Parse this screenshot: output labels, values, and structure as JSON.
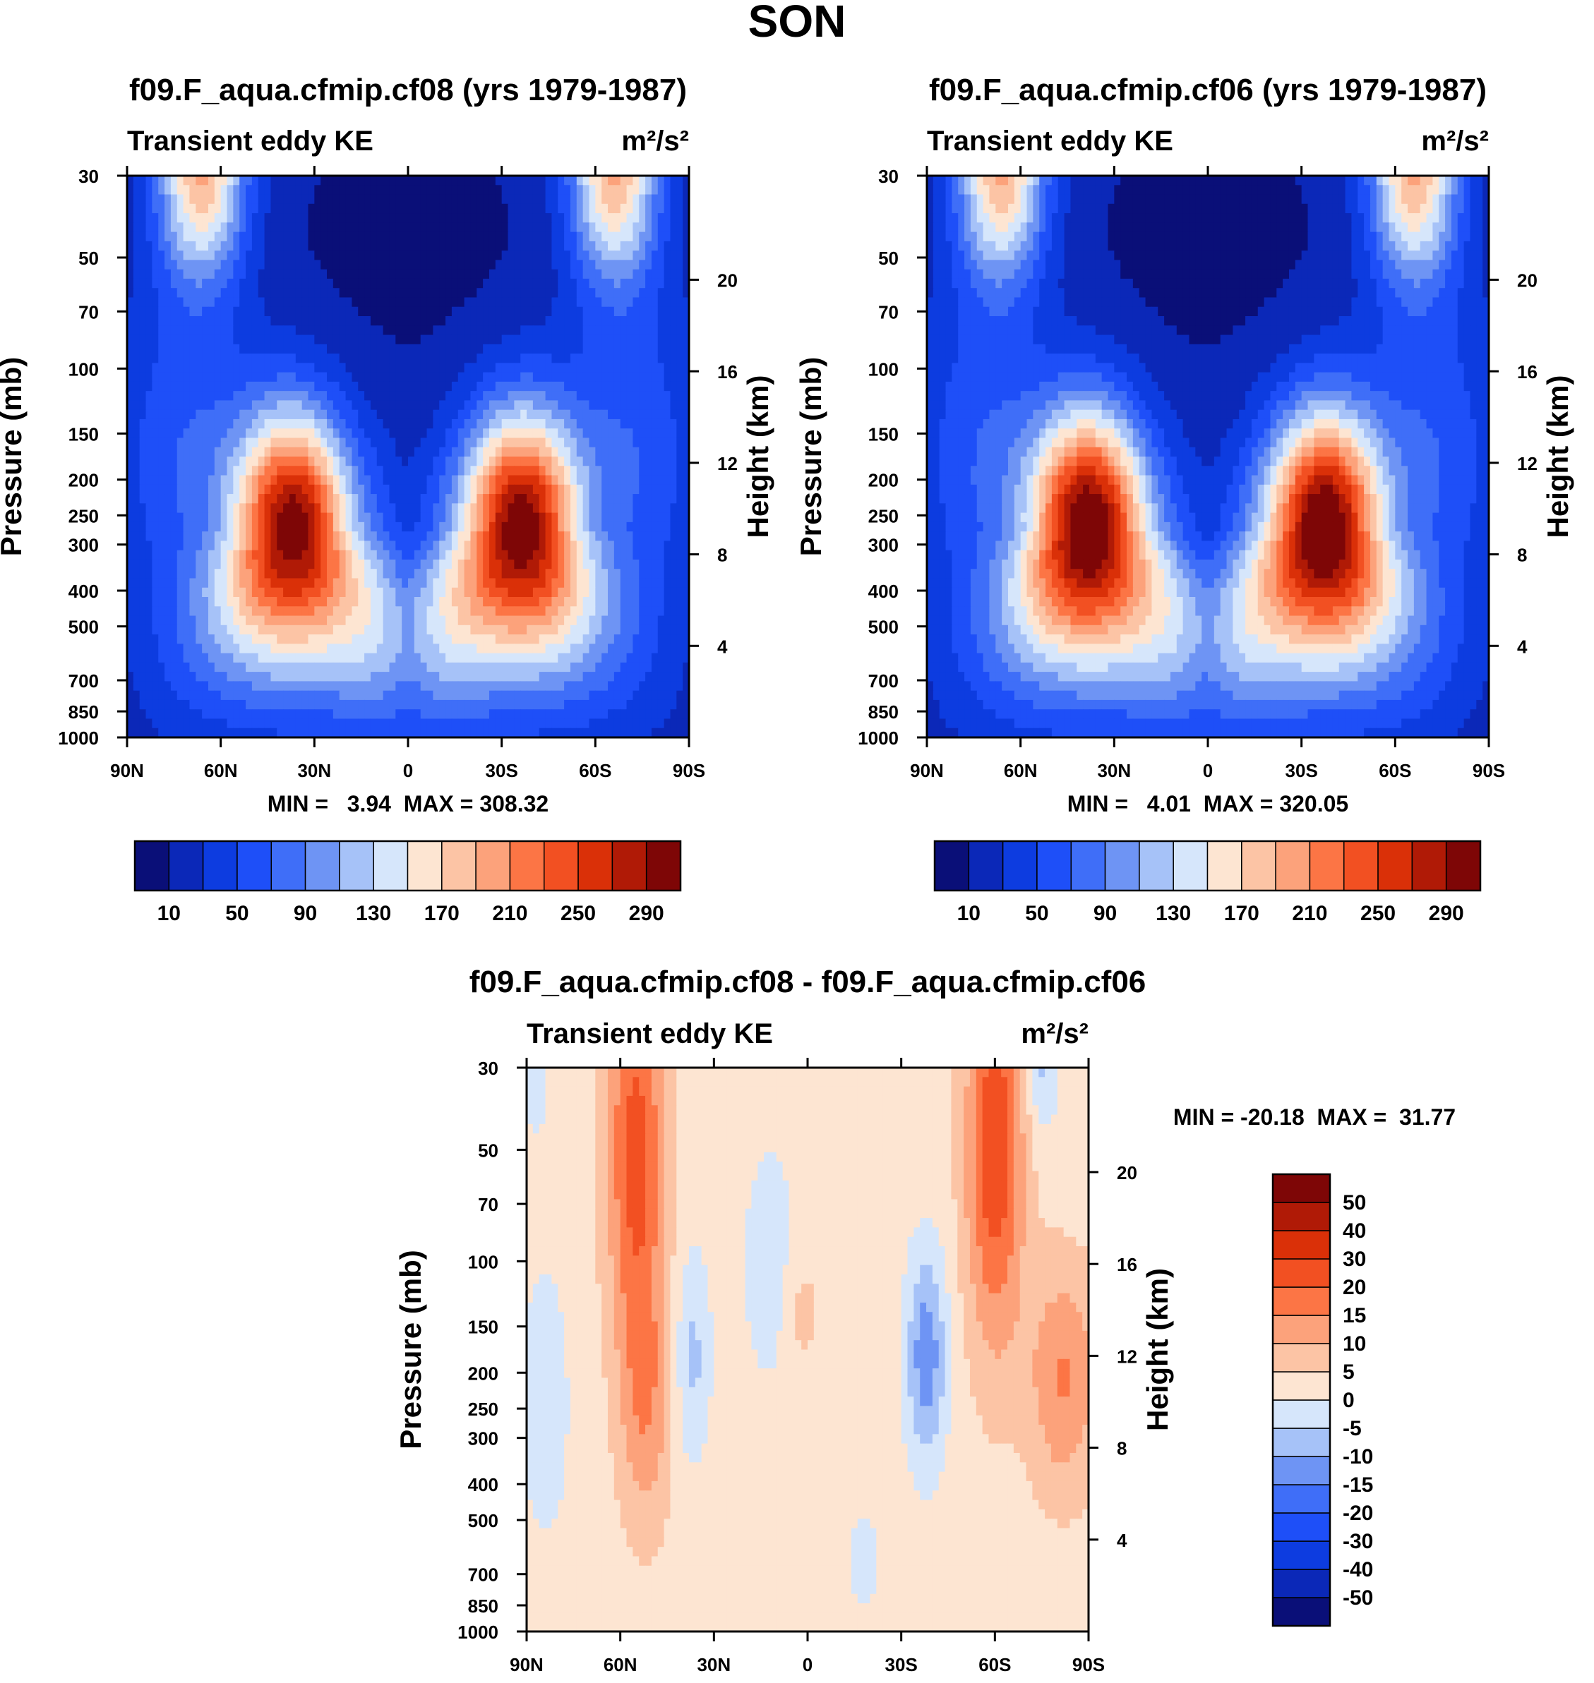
{
  "figure": {
    "season": "SON"
  },
  "chart_data": [
    {
      "type": "heatmap",
      "title": "f09.F_aqua.cfmip.cf08 (yrs 1979-1987)",
      "subtitle_left": "Transient eddy KE",
      "units": "m²/s²",
      "ylabel": "Pressure (mb)",
      "ylabel_right": "Height (km)",
      "x_ticks": [
        "90N",
        "60N",
        "30N",
        "0",
        "30S",
        "60S",
        "90S"
      ],
      "x_tick_values": [
        90,
        60,
        30,
        0,
        -30,
        -60,
        -90
      ],
      "xlim": [
        90,
        -90
      ],
      "y_ticks": [
        "30",
        "50",
        "70",
        "100",
        "150",
        "200",
        "250",
        "300",
        "400",
        "500",
        "700",
        "850",
        "1000"
      ],
      "y_tick_values": [
        30,
        50,
        70,
        100,
        150,
        200,
        250,
        300,
        400,
        500,
        700,
        850,
        1000
      ],
      "ylim": [
        1000,
        30
      ],
      "height_ticks": [
        "20",
        "16",
        "12",
        "8",
        "4"
      ],
      "height_tick_values": [
        20,
        16,
        12,
        8,
        4
      ],
      "min": 3.94,
      "max": 308.32,
      "minmax_text": "MIN =   3.94  MAX = 308.32",
      "jets": [
        {
          "lat": 37,
          "p": 270,
          "peak": 305
        },
        {
          "lat": -36,
          "p": 270,
          "peak": 308
        }
      ],
      "colorbar": {
        "levels": [
          10,
          30,
          50,
          70,
          90,
          110,
          130,
          150,
          170,
          190,
          210,
          230,
          250,
          270,
          290
        ],
        "tick_labels": [
          "10",
          "50",
          "90",
          "130",
          "170",
          "210",
          "250",
          "290"
        ],
        "colors": [
          "#0a0f78",
          "#0b28b8",
          "#0d3ce0",
          "#1e4ff8",
          "#3f6ef8",
          "#6e94f4",
          "#a6c2f8",
          "#d6e6fb",
          "#fde5d2",
          "#fcc4a5",
          "#fca27b",
          "#fc7545",
          "#f25022",
          "#da3008",
          "#b01a06",
          "#7e0606"
        ]
      }
    },
    {
      "type": "heatmap",
      "title": "f09.F_aqua.cfmip.cf06 (yrs 1979-1987)",
      "subtitle_left": "Transient eddy KE",
      "units": "m²/s²",
      "ylabel": "Pressure (mb)",
      "ylabel_right": "Height (km)",
      "x_ticks": [
        "90N",
        "60N",
        "30N",
        "0",
        "30S",
        "60S",
        "90S"
      ],
      "x_tick_values": [
        90,
        60,
        30,
        0,
        -30,
        -60,
        -90
      ],
      "xlim": [
        90,
        -90
      ],
      "y_ticks": [
        "30",
        "50",
        "70",
        "100",
        "150",
        "200",
        "250",
        "300",
        "400",
        "500",
        "700",
        "850",
        "1000"
      ],
      "y_tick_values": [
        30,
        50,
        70,
        100,
        150,
        200,
        250,
        300,
        400,
        500,
        700,
        850,
        1000
      ],
      "ylim": [
        1000,
        30
      ],
      "height_ticks": [
        "20",
        "16",
        "12",
        "8",
        "4"
      ],
      "height_tick_values": [
        20,
        16,
        12,
        8,
        4
      ],
      "min": 4.01,
      "max": 320.05,
      "minmax_text": "MIN =   4.01  MAX = 320.05",
      "jets": [
        {
          "lat": 38,
          "p": 270,
          "peak": 318
        },
        {
          "lat": -37,
          "p": 270,
          "peak": 320
        }
      ],
      "colorbar": {
        "levels": [
          10,
          30,
          50,
          70,
          90,
          110,
          130,
          150,
          170,
          190,
          210,
          230,
          250,
          270,
          290
        ],
        "tick_labels": [
          "10",
          "50",
          "90",
          "130",
          "170",
          "210",
          "250",
          "290"
        ],
        "colors": [
          "#0a0f78",
          "#0b28b8",
          "#0d3ce0",
          "#1e4ff8",
          "#3f6ef8",
          "#6e94f4",
          "#a6c2f8",
          "#d6e6fb",
          "#fde5d2",
          "#fcc4a5",
          "#fca27b",
          "#fc7545",
          "#f25022",
          "#da3008",
          "#b01a06",
          "#7e0606"
        ]
      }
    },
    {
      "type": "heatmap",
      "title": "f09.F_aqua.cfmip.cf08 - f09.F_aqua.cfmip.cf06",
      "subtitle_left": "Transient eddy KE",
      "units": "m²/s²",
      "ylabel": "Pressure (mb)",
      "ylabel_right": "Height (km)",
      "x_ticks": [
        "90N",
        "60N",
        "30N",
        "0",
        "30S",
        "60S",
        "90S"
      ],
      "x_tick_values": [
        90,
        60,
        30,
        0,
        -30,
        -60,
        -90
      ],
      "xlim": [
        90,
        -90
      ],
      "y_ticks": [
        "30",
        "50",
        "70",
        "100",
        "150",
        "200",
        "250",
        "300",
        "400",
        "500",
        "700",
        "850",
        "1000"
      ],
      "y_tick_values": [
        30,
        50,
        70,
        100,
        150,
        200,
        250,
        300,
        400,
        500,
        700,
        850,
        1000
      ],
      "ylim": [
        1000,
        30
      ],
      "height_ticks": [
        "20",
        "16",
        "12",
        "8",
        "4"
      ],
      "height_tick_values": [
        20,
        16,
        12,
        8,
        4
      ],
      "min": -20.18,
      "max": 31.77,
      "minmax_text": "MIN = -20.18  MAX =  31.77",
      "colorbar": {
        "levels": [
          -50,
          -40,
          -30,
          -20,
          -15,
          -10,
          -5,
          0,
          5,
          10,
          15,
          20,
          30,
          40,
          50
        ],
        "tick_labels": [
          "-50",
          "-40",
          "-30",
          "-20",
          "-15",
          "-10",
          "-5",
          "0",
          "5",
          "10",
          "15",
          "20",
          "30",
          "40",
          "50"
        ],
        "colors": [
          "#0a0f78",
          "#0b28b8",
          "#0d3ce0",
          "#1e4ff8",
          "#3f6ef8",
          "#6e94f4",
          "#a6c2f8",
          "#d6e6fb",
          "#fde5d2",
          "#fcc4a5",
          "#fca27b",
          "#fc7545",
          "#f25022",
          "#da3008",
          "#b01a06",
          "#7e0606"
        ]
      }
    }
  ]
}
